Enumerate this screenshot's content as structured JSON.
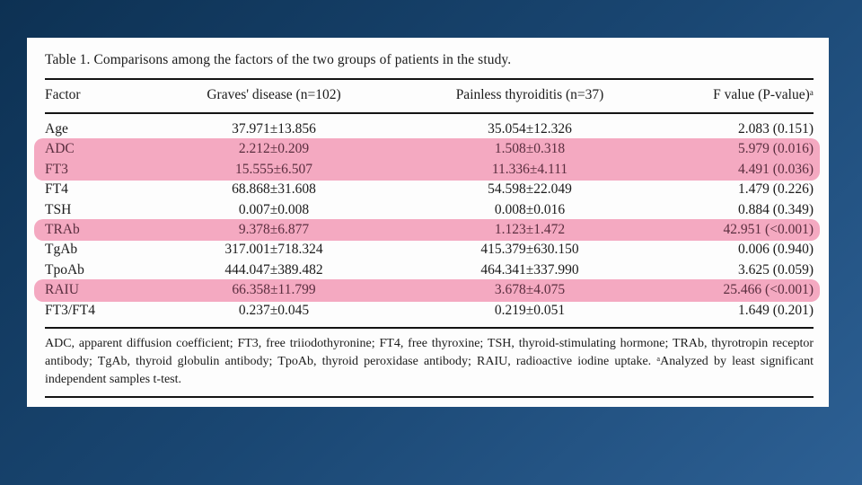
{
  "colors": {
    "bg_top": "#0d3153",
    "bg_bottom": "#2d6094",
    "panel": "#fdfdfd",
    "text": "#1b1b1b",
    "rule": "#141414",
    "highlight": "#f4a9c1",
    "highlight_text": "#5a2e3f"
  },
  "table": {
    "title": "Table 1. Comparisons among the factors of the two groups of patients in the study.",
    "columns": [
      "Factor",
      "Graves' disease (n=102)",
      "Painless thyroiditis (n=37)",
      "F value (P-value)ᵃ"
    ],
    "rows": [
      {
        "factor": "Age",
        "graves": "37.971±13.856",
        "painless": "35.054±12.326",
        "f_value": "2.083 (0.151)",
        "highlighted": false
      },
      {
        "factor": "ADC",
        "graves": "2.212±0.209",
        "painless": "1.508±0.318",
        "f_value": "5.979 (0.016)",
        "highlighted": true
      },
      {
        "factor": "FT3",
        "graves": "15.555±6.507",
        "painless": "11.336±4.111",
        "f_value": "4.491 (0.036)",
        "highlighted": true
      },
      {
        "factor": "FT4",
        "graves": "68.868±31.608",
        "painless": "54.598±22.049",
        "f_value": "1.479 (0.226)",
        "highlighted": false
      },
      {
        "factor": "TSH",
        "graves": "0.007±0.008",
        "painless": "0.008±0.016",
        "f_value": "0.884 (0.349)",
        "highlighted": false
      },
      {
        "factor": "TRAb",
        "graves": "9.378±6.877",
        "painless": "1.123±1.472",
        "f_value": "42.951 (<0.001)",
        "highlighted": true
      },
      {
        "factor": "TgAb",
        "graves": "317.001±718.324",
        "painless": "415.379±630.150",
        "f_value": "0.006 (0.940)",
        "highlighted": false
      },
      {
        "factor": "TpoAb",
        "graves": "444.047±389.482",
        "painless": "464.341±337.990",
        "f_value": "3.625 (0.059)",
        "highlighted": false
      },
      {
        "factor": "RAIU",
        "graves": "66.358±11.799",
        "painless": "3.678±4.075",
        "f_value": "25.466 (<0.001)",
        "highlighted": true
      },
      {
        "factor": "FT3/FT4",
        "graves": "0.237±0.045",
        "painless": "0.219±0.051",
        "f_value": "1.649 (0.201)",
        "highlighted": false
      }
    ],
    "footnote": "ADC, apparent diffusion coefficient; FT3, free triiodothyronine; FT4, free thyroxine; TSH, thyroid-stimulating hormone; TRAb, thyrotropin receptor antibody; TgAb, thyroid globulin antibody; TpoAb, thyroid peroxidase antibody; RAIU, radioactive iodine uptake. ᵃAnalyzed by least significant independent samples t-test."
  }
}
